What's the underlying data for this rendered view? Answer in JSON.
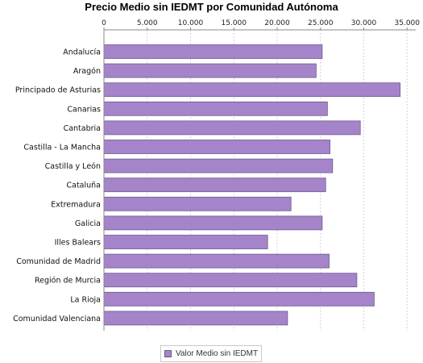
{
  "chart_data": {
    "type": "bar",
    "orientation": "horizontal",
    "title": "Precio Medio sin IEDMT por Comunidad Autónoma",
    "categories": [
      "Andalucía",
      "Aragón",
      "Principado de Asturias",
      "Canarias",
      "Cantabria",
      "Castilla - La Mancha",
      "Castilla y León",
      "Cataluña",
      "Extremadura",
      "Galicia",
      "Illes Balears",
      "Comunidad de Madrid",
      "Región de Murcia",
      "La Rioja",
      "Comunidad Valenciana"
    ],
    "series": [
      {
        "name": "Valor Medio sin IEDMT",
        "color": "#a584c9",
        "values": [
          25200,
          24500,
          34200,
          25800,
          29600,
          26100,
          26400,
          25600,
          21600,
          25200,
          18900,
          26000,
          29200,
          31200,
          21200
        ]
      }
    ],
    "xlim": [
      0,
      36000
    ],
    "xticks": [
      0,
      5000,
      10000,
      15000,
      20000,
      25000,
      30000,
      35000
    ],
    "xtick_labels": [
      "0",
      "5.000",
      "10.000",
      "15.000",
      "20.000",
      "25.000",
      "30.000",
      "35.000"
    ],
    "axis_position": "top",
    "grid": true,
    "legend": "bottom",
    "legend_label": "Valor Medio sin IEDMT"
  }
}
